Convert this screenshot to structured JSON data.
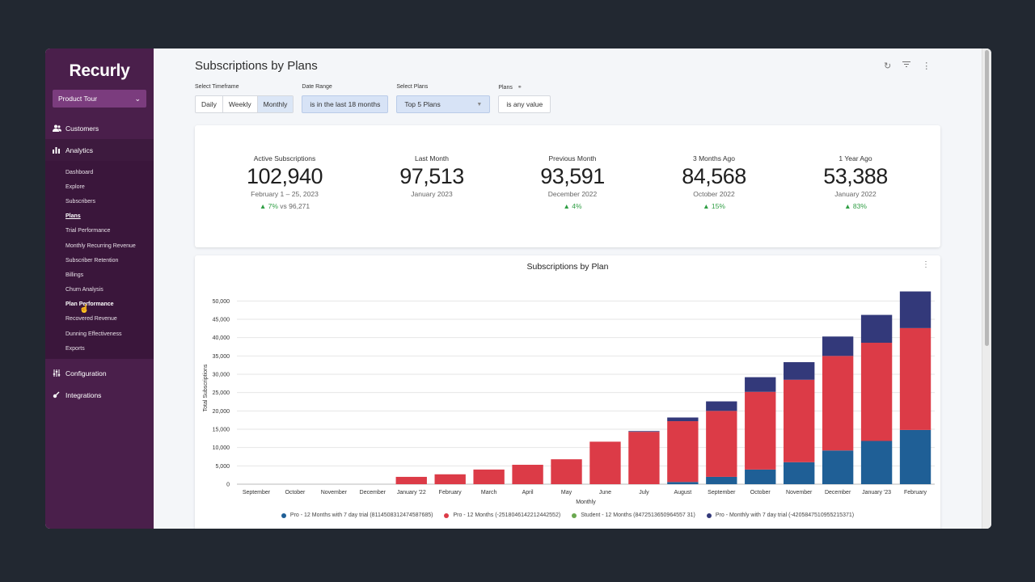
{
  "sidebar": {
    "logo": "Recurly",
    "account": "Product Tour",
    "nav": {
      "customers": "Customers",
      "analytics": "Analytics",
      "configuration": "Configuration",
      "integrations": "Integrations"
    },
    "analytics_items": [
      "Dashboard",
      "Explore",
      "Subscribers",
      "Plans",
      "Trial Performance",
      "Monthly Recurring Revenue",
      "Subscriber Retention",
      "Billings",
      "Churn Analysis",
      "Plan Performance",
      "Recovered Revenue",
      "Dunning Effectiveness",
      "Exports"
    ],
    "current_item": "Plans",
    "hover_item": "Plan Performance"
  },
  "page": {
    "title": "Subscriptions by Plans"
  },
  "filters": {
    "timeframe": {
      "label": "Select Timeframe",
      "options": [
        "Daily",
        "Weekly",
        "Monthly"
      ],
      "selected": "Monthly"
    },
    "date_range": {
      "label": "Date Range",
      "value": "is in the last 18 months"
    },
    "plans_select": {
      "label": "Select Plans",
      "value": "Top 5 Plans"
    },
    "plans_filter": {
      "label": "Plans",
      "value": "is any value"
    }
  },
  "kpis": [
    {
      "label": "Active Subscriptions",
      "value": "102,940",
      "date": "February 1 – 25, 2023",
      "change": "7%",
      "vs": "vs 96,271"
    },
    {
      "label": "Last Month",
      "value": "97,513",
      "date": "January 2023",
      "change": "",
      "vs": ""
    },
    {
      "label": "Previous Month",
      "value": "93,591",
      "date": "December 2022",
      "change": "4%",
      "vs": ""
    },
    {
      "label": "3 Months Ago",
      "value": "84,568",
      "date": "October 2022",
      "change": "15%",
      "vs": ""
    },
    {
      "label": "1 Year Ago",
      "value": "53,388",
      "date": "January 2022",
      "change": "83%",
      "vs": ""
    }
  ],
  "colors": {
    "series_blue": "#1f5f96",
    "series_red": "#dc3b47",
    "series_green": "#6aa84f",
    "series_navy": "#33397a",
    "positive": "#2f9e44",
    "sidebar": "#4a1f4b"
  },
  "chart_data": {
    "type": "bar",
    "stacked": true,
    "title": "Subscriptions by Plan",
    "xlabel": "Monthly",
    "ylabel": "Total Subscriptions",
    "ylim": [
      0,
      52500
    ],
    "yticks": [
      0,
      5000,
      10000,
      15000,
      20000,
      25000,
      30000,
      35000,
      40000,
      45000,
      50000
    ],
    "ytick_labels": [
      "0",
      "5,000",
      "10,000",
      "15,000",
      "20,000",
      "25,000",
      "30,000",
      "35,000",
      "40,000",
      "45,000",
      "50,000"
    ],
    "categories": [
      "September",
      "October",
      "November",
      "December",
      "January '22",
      "February",
      "March",
      "April",
      "May",
      "June",
      "July",
      "August",
      "September",
      "October",
      "November",
      "December",
      "January '23",
      "February"
    ],
    "series": [
      {
        "name": "Pro - 12 Months with 7 day trial (8114508312474587685)",
        "color": "#1f5f96",
        "values": [
          0,
          0,
          0,
          0,
          0,
          0,
          0,
          0,
          0,
          0,
          0,
          600,
          2000,
          4000,
          6000,
          9200,
          11800,
          14800
        ]
      },
      {
        "name": "Pro - 12 Months (-2518046142212442552)",
        "color": "#dc3b47",
        "values": [
          0,
          0,
          0,
          0,
          2000,
          2700,
          4000,
          5300,
          6800,
          11600,
          14300,
          16600,
          18000,
          21200,
          22500,
          25800,
          26800,
          27800
        ]
      },
      {
        "name": "Student - 12 Months (8472513650964557 31)",
        "color": "#6aa84f",
        "values": [
          0,
          0,
          0,
          0,
          0,
          0,
          0,
          0,
          0,
          0,
          0,
          0,
          0,
          0,
          0,
          0,
          0,
          0
        ]
      },
      {
        "name": "Pro - Monthly with 7 day trial (-4205847510955215371)",
        "color": "#33397a",
        "values": [
          0,
          0,
          0,
          0,
          0,
          0,
          0,
          0,
          0,
          0,
          200,
          1000,
          2600,
          4000,
          4800,
          5300,
          7600,
          10000
        ]
      }
    ]
  },
  "legend": [
    {
      "label": "Pro - 12 Months with 7 day trial (8114508312474587685)",
      "color": "#1f5f96"
    },
    {
      "label": "Pro - 12 Months (-2518046142212442552)",
      "color": "#dc3b47"
    },
    {
      "label": "Student - 12 Months (8472513650964557 31)",
      "color": "#6aa84f"
    },
    {
      "label": "Pro - Monthly with 7 day trial (-4205847510955215371)",
      "color": "#33397a"
    }
  ]
}
